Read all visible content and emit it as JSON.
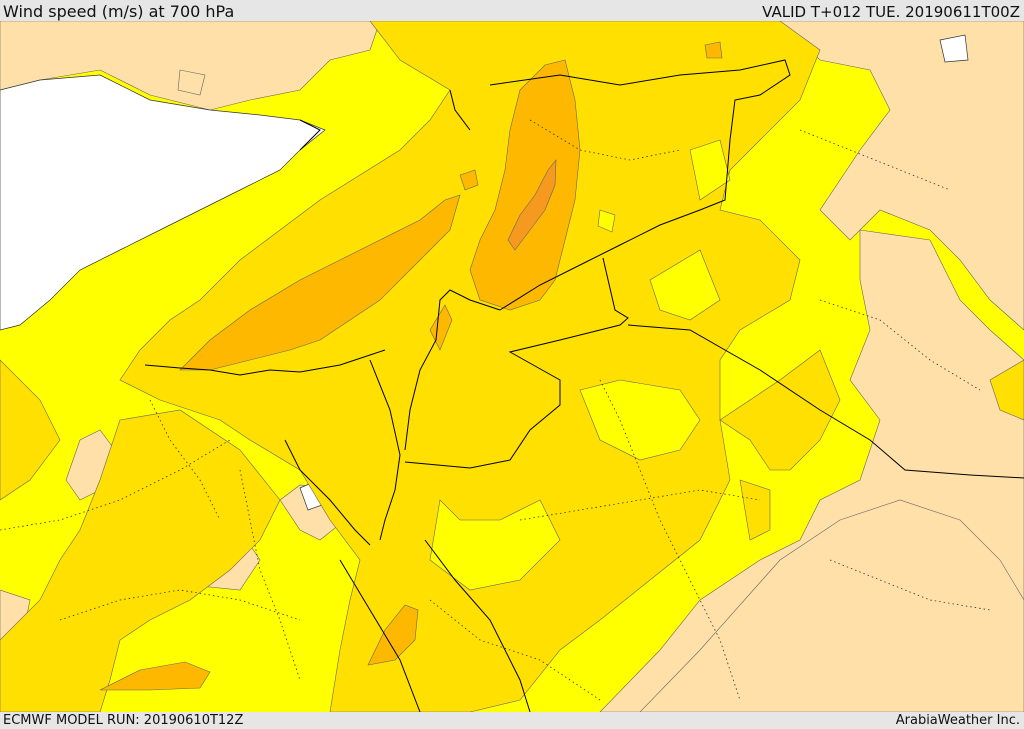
{
  "header": {
    "title": "Wind speed (m/s) at 700 hPa",
    "valid": "VALID T+012 TUE. 20190611T00Z"
  },
  "footer": {
    "model_run": "ECMWF MODEL RUN: 20190610T12Z",
    "credit": "ArabiaWeather Inc."
  },
  "map": {
    "field": "wind speed",
    "level": "700 hPa",
    "colors": {
      "background_bar": "#e6e6e6",
      "sea": "#ffffff",
      "level_low": "#ffe0a8",
      "level_mid": "#ffff00",
      "level_high": "#ffe000",
      "level_higher": "#ffb800",
      "level_highest": "#f59a1e",
      "border_line": "#000000",
      "contour_line": "#555555"
    }
  }
}
